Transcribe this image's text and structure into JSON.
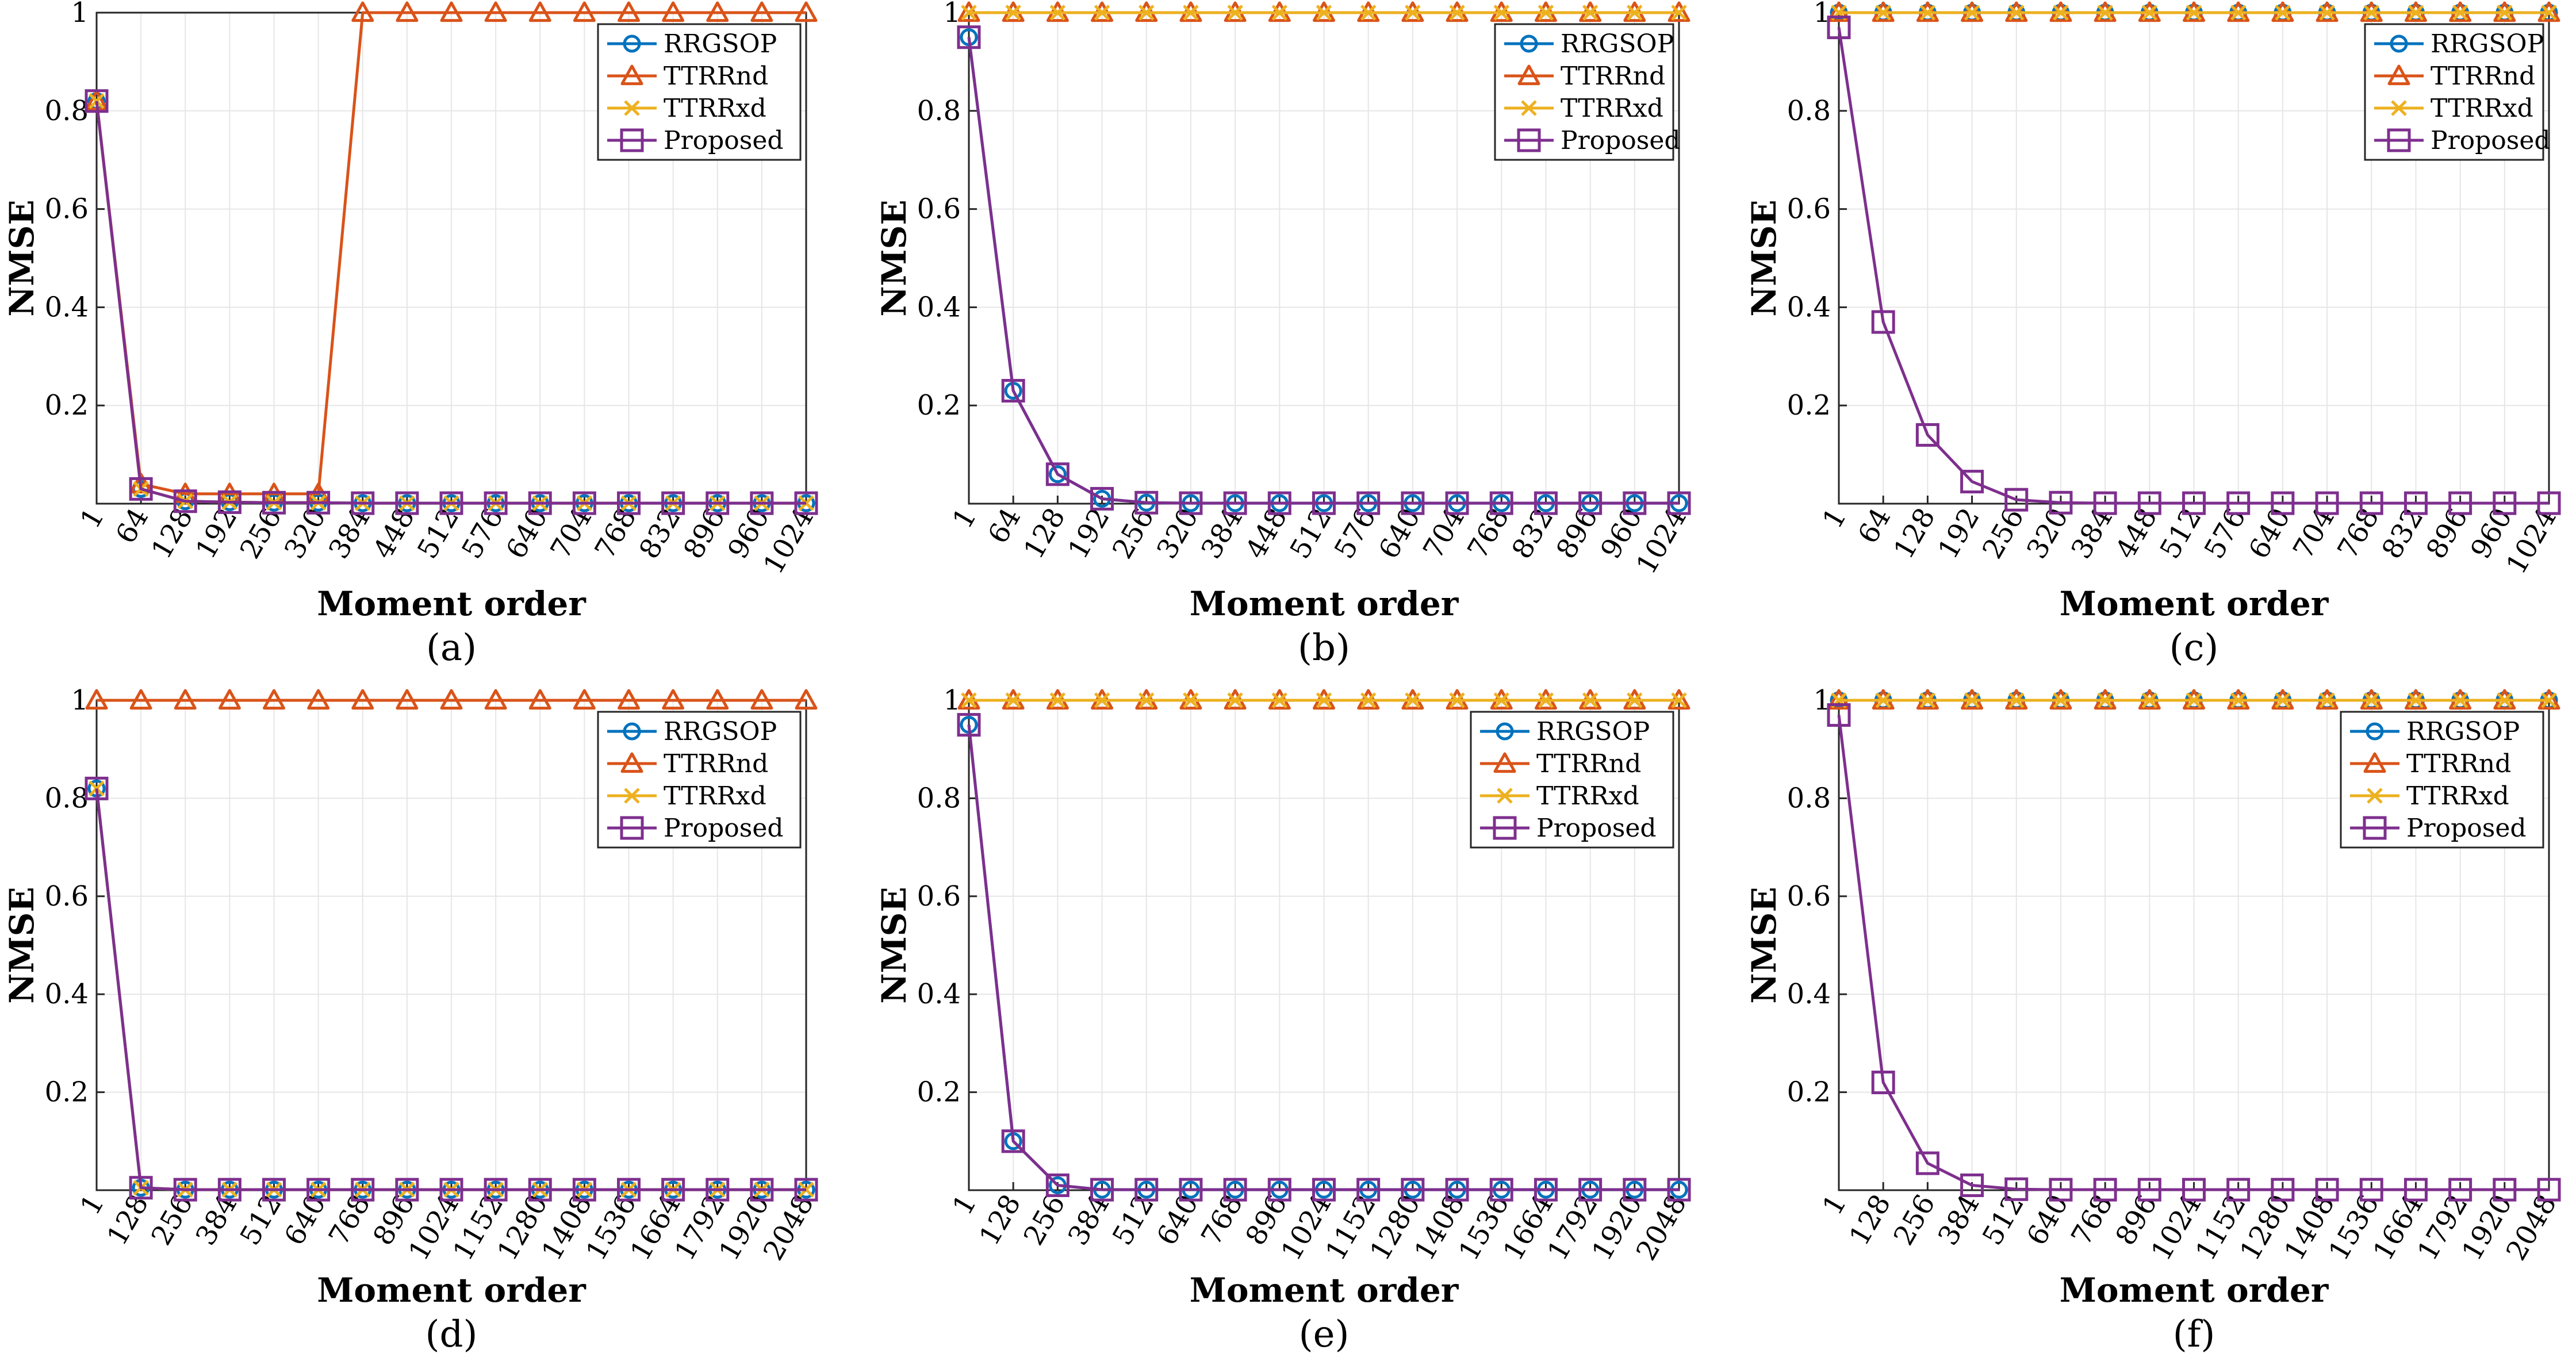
{
  "colors": {
    "RRGSOP": "#0072BD",
    "TTRRnd": "#D95319",
    "TTRRxd": "#EDB120",
    "Proposed": "#7E2F8E",
    "grid": "#e6e6e6",
    "axis": "#262626"
  },
  "markers": {
    "RRGSOP": "circle",
    "TTRRnd": "triangle",
    "TTRRxd": "x",
    "Proposed": "square"
  },
  "chart_data": [
    {
      "type": "line",
      "panel": "(a)",
      "xlabel": "Moment order",
      "ylabel": "NMSE",
      "ylim": [
        0,
        1
      ],
      "yticks": [
        0.2,
        0.4,
        0.6,
        0.8,
        1
      ],
      "ytick_labels": [
        "0.2",
        "0.4",
        "0.6",
        "0.8",
        "1"
      ],
      "categories": [
        "1",
        "64",
        "128",
        "192",
        "256",
        "320",
        "384",
        "448",
        "512",
        "576",
        "640",
        "704",
        "768",
        "832",
        "896",
        "960",
        "1024"
      ],
      "legend": [
        "RRGSOP",
        "TTRRnd",
        "TTRRxd",
        "Proposed"
      ],
      "legend_position": "top-right",
      "grid": true,
      "series": [
        {
          "name": "RRGSOP",
          "values": [
            0.82,
            0.03,
            0.005,
            0.003,
            0.002,
            0.002,
            0.001,
            0.001,
            0.001,
            0.001,
            0.001,
            0.001,
            0.001,
            0.001,
            0.001,
            0.001,
            0.001
          ]
        },
        {
          "name": "TTRRnd",
          "values": [
            0.82,
            0.04,
            0.02,
            0.02,
            0.02,
            0.02,
            1,
            1,
            1,
            1,
            1,
            1,
            1,
            1,
            1,
            1,
            1
          ]
        },
        {
          "name": "TTRRxd",
          "values": [
            0.82,
            0.03,
            0.005,
            0.003,
            0.002,
            0.002,
            0.001,
            0.001,
            0.001,
            0.001,
            0.001,
            0.001,
            0.001,
            0.001,
            0.001,
            0.001,
            0.001
          ]
        },
        {
          "name": "Proposed",
          "values": [
            0.82,
            0.03,
            0.005,
            0.003,
            0.002,
            0.002,
            0.001,
            0.001,
            0.001,
            0.001,
            0.001,
            0.001,
            0.001,
            0.001,
            0.001,
            0.001,
            0.001
          ]
        }
      ]
    },
    {
      "type": "line",
      "panel": "(b)",
      "xlabel": "Moment order",
      "ylabel": "NMSE",
      "ylim": [
        0,
        1
      ],
      "yticks": [
        0.2,
        0.4,
        0.6,
        0.8,
        1
      ],
      "ytick_labels": [
        "0.2",
        "0.4",
        "0.6",
        "0.8",
        "1"
      ],
      "categories": [
        "1",
        "64",
        "128",
        "192",
        "256",
        "320",
        "384",
        "448",
        "512",
        "576",
        "640",
        "704",
        "768",
        "832",
        "896",
        "960",
        "1024"
      ],
      "legend": [
        "RRGSOP",
        "TTRRnd",
        "TTRRxd",
        "Proposed"
      ],
      "legend_position": "top-right",
      "grid": true,
      "series": [
        {
          "name": "RRGSOP",
          "values": [
            0.95,
            0.23,
            0.06,
            0.01,
            0.002,
            0.001,
            0.001,
            0.001,
            0.001,
            0.001,
            0.001,
            0.001,
            0.001,
            0.001,
            0.001,
            0.001,
            0.001
          ]
        },
        {
          "name": "TTRRnd",
          "values": [
            1,
            1,
            1,
            1,
            1,
            1,
            1,
            1,
            1,
            1,
            1,
            1,
            1,
            1,
            1,
            1,
            1
          ]
        },
        {
          "name": "TTRRxd",
          "values": [
            1,
            1,
            1,
            1,
            1,
            1,
            1,
            1,
            1,
            1,
            1,
            1,
            1,
            1,
            1,
            1,
            1
          ]
        },
        {
          "name": "Proposed",
          "values": [
            0.95,
            0.23,
            0.06,
            0.01,
            0.002,
            0.001,
            0.001,
            0.001,
            0.001,
            0.001,
            0.001,
            0.001,
            0.001,
            0.001,
            0.001,
            0.001,
            0.001
          ]
        }
      ]
    },
    {
      "type": "line",
      "panel": "(c)",
      "xlabel": "Moment order",
      "ylabel": "NMSE",
      "ylim": [
        0,
        1
      ],
      "yticks": [
        0.2,
        0.4,
        0.6,
        0.8,
        1
      ],
      "ytick_labels": [
        "0.2",
        "0.4",
        "0.6",
        "0.8",
        "1"
      ],
      "categories": [
        "1",
        "64",
        "128",
        "192",
        "256",
        "320",
        "384",
        "448",
        "512",
        "576",
        "640",
        "704",
        "768",
        "832",
        "896",
        "960",
        "1024"
      ],
      "legend": [
        "RRGSOP",
        "TTRRnd",
        "TTRRxd",
        "Proposed"
      ],
      "legend_position": "top-right",
      "grid": true,
      "series": [
        {
          "name": "RRGSOP",
          "values": [
            1,
            1,
            1,
            1,
            1,
            1,
            1,
            1,
            1,
            1,
            1,
            1,
            1,
            1,
            1,
            1,
            1
          ]
        },
        {
          "name": "TTRRnd",
          "values": [
            1,
            1,
            1,
            1,
            1,
            1,
            1,
            1,
            1,
            1,
            1,
            1,
            1,
            1,
            1,
            1,
            1
          ]
        },
        {
          "name": "TTRRxd",
          "values": [
            1,
            1,
            1,
            1,
            1,
            1,
            1,
            1,
            1,
            1,
            1,
            1,
            1,
            1,
            1,
            1,
            1
          ]
        },
        {
          "name": "Proposed",
          "values": [
            0.97,
            0.37,
            0.14,
            0.045,
            0.008,
            0.002,
            0.001,
            0.001,
            0.001,
            0.001,
            0.001,
            0.001,
            0.001,
            0.001,
            0.001,
            0.001,
            0.001
          ]
        }
      ]
    },
    {
      "type": "line",
      "panel": "(d)",
      "xlabel": "Moment order",
      "ylabel": "NMSE",
      "ylim": [
        0,
        1
      ],
      "yticks": [
        0.2,
        0.4,
        0.6,
        0.8,
        1
      ],
      "ytick_labels": [
        "0.2",
        "0.4",
        "0.6",
        "0.8",
        "1"
      ],
      "categories": [
        "1",
        "128",
        "256",
        "384",
        "512",
        "640",
        "768",
        "896",
        "1024",
        "1152",
        "1280",
        "1408",
        "1536",
        "1664",
        "1792",
        "1920",
        "2048"
      ],
      "legend": [
        "RRGSOP",
        "TTRRnd",
        "TTRRxd",
        "Proposed"
      ],
      "legend_position": "top-right",
      "grid": true,
      "series": [
        {
          "name": "RRGSOP",
          "values": [
            0.82,
            0.005,
            0.001,
            0.001,
            0.001,
            0.001,
            0.001,
            0.001,
            0.001,
            0.001,
            0.001,
            0.001,
            0.001,
            0.001,
            0.001,
            0.001,
            0.001
          ]
        },
        {
          "name": "TTRRnd",
          "values": [
            1,
            1,
            1,
            1,
            1,
            1,
            1,
            1,
            1,
            1,
            1,
            1,
            1,
            1,
            1,
            1,
            1
          ]
        },
        {
          "name": "TTRRxd",
          "values": [
            0.82,
            0.005,
            0.001,
            0.001,
            0.001,
            0.001,
            0.001,
            0.001,
            0.001,
            0.001,
            0.001,
            0.001,
            0.001,
            0.001,
            0.001,
            0.001,
            0.001
          ]
        },
        {
          "name": "Proposed",
          "values": [
            0.82,
            0.005,
            0.001,
            0.001,
            0.001,
            0.001,
            0.001,
            0.001,
            0.001,
            0.001,
            0.001,
            0.001,
            0.001,
            0.001,
            0.001,
            0.001,
            0.001
          ]
        }
      ]
    },
    {
      "type": "line",
      "panel": "(e)",
      "xlabel": "Moment order",
      "ylabel": "NMSE",
      "ylim": [
        0,
        1
      ],
      "yticks": [
        0.2,
        0.4,
        0.6,
        0.8,
        1
      ],
      "ytick_labels": [
        "0.2",
        "0.4",
        "0.6",
        "0.8",
        "1"
      ],
      "categories": [
        "1",
        "128",
        "256",
        "384",
        "512",
        "640",
        "768",
        "896",
        "1024",
        "1152",
        "1280",
        "1408",
        "1536",
        "1664",
        "1792",
        "1920",
        "2048"
      ],
      "legend": [
        "RRGSOP",
        "TTRRnd",
        "TTRRxd",
        "Proposed"
      ],
      "legend_position": "top-right",
      "grid": true,
      "series": [
        {
          "name": "RRGSOP",
          "values": [
            0.95,
            0.1,
            0.01,
            0.001,
            0.001,
            0.001,
            0.001,
            0.001,
            0.001,
            0.001,
            0.001,
            0.001,
            0.001,
            0.001,
            0.001,
            0.001,
            0.001
          ]
        },
        {
          "name": "TTRRnd",
          "values": [
            1,
            1,
            1,
            1,
            1,
            1,
            1,
            1,
            1,
            1,
            1,
            1,
            1,
            1,
            1,
            1,
            1
          ]
        },
        {
          "name": "TTRRxd",
          "values": [
            1,
            1,
            1,
            1,
            1,
            1,
            1,
            1,
            1,
            1,
            1,
            1,
            1,
            1,
            1,
            1,
            1
          ]
        },
        {
          "name": "Proposed",
          "values": [
            0.95,
            0.1,
            0.01,
            0.001,
            0.001,
            0.001,
            0.001,
            0.001,
            0.001,
            0.001,
            0.001,
            0.001,
            0.001,
            0.001,
            0.001,
            0.001,
            0.001
          ]
        }
      ]
    },
    {
      "type": "line",
      "panel": "(f)",
      "xlabel": "Moment order",
      "ylabel": "NMSE",
      "ylim": [
        0,
        1
      ],
      "yticks": [
        0.2,
        0.4,
        0.6,
        0.8,
        1
      ],
      "ytick_labels": [
        "0.2",
        "0.4",
        "0.6",
        "0.8",
        "1"
      ],
      "categories": [
        "1",
        "128",
        "256",
        "384",
        "512",
        "640",
        "768",
        "896",
        "1024",
        "1152",
        "1280",
        "1408",
        "1536",
        "1664",
        "1792",
        "1920",
        "2048"
      ],
      "legend": [
        "RRGSOP",
        "TTRRnd",
        "TTRRxd",
        "Proposed"
      ],
      "legend_position": "top-right",
      "grid": true,
      "series": [
        {
          "name": "RRGSOP",
          "values": [
            1,
            1,
            1,
            1,
            1,
            1,
            1,
            1,
            1,
            1,
            1,
            1,
            1,
            1,
            1,
            1,
            1
          ]
        },
        {
          "name": "TTRRnd",
          "values": [
            1,
            1,
            1,
            1,
            1,
            1,
            1,
            1,
            1,
            1,
            1,
            1,
            1,
            1,
            1,
            1,
            1
          ]
        },
        {
          "name": "TTRRxd",
          "values": [
            1,
            1,
            1,
            1,
            1,
            1,
            1,
            1,
            1,
            1,
            1,
            1,
            1,
            1,
            1,
            1,
            1
          ]
        },
        {
          "name": "Proposed",
          "values": [
            0.97,
            0.22,
            0.055,
            0.01,
            0.002,
            0.001,
            0.001,
            0.001,
            0.001,
            0.001,
            0.001,
            0.001,
            0.001,
            0.001,
            0.001,
            0.001,
            0.001
          ]
        }
      ]
    }
  ]
}
